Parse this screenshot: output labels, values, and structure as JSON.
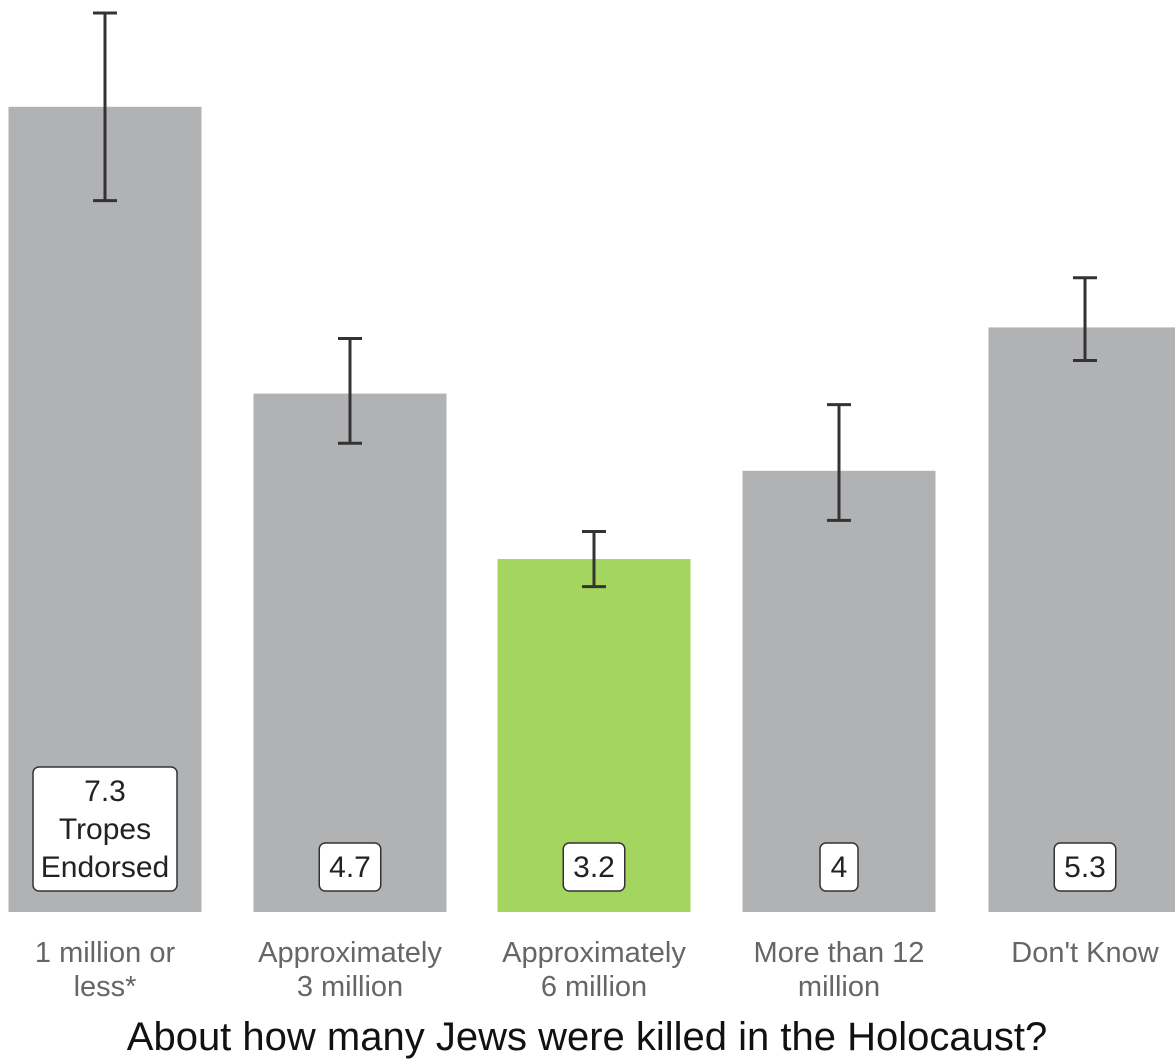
{
  "chart_data": {
    "type": "bar",
    "title": "About how many Jews were killed in the Holocaust?",
    "xlabel": "About how many Jews were killed in the Holocaust?",
    "ylabel": "",
    "ylim": [
      0,
      8.5
    ],
    "grid": false,
    "legend": "none",
    "categories": [
      [
        "1 million or",
        "less*"
      ],
      [
        "Approximately",
        "3 million"
      ],
      [
        "Approximately",
        "6 million"
      ],
      [
        "More than 12",
        "million"
      ],
      [
        "Don't Know"
      ]
    ],
    "values": [
      7.3,
      4.7,
      3.2,
      4.0,
      5.3
    ],
    "error_low": [
      6.45,
      4.25,
      2.95,
      3.55,
      5.0
    ],
    "error_high": [
      8.15,
      5.2,
      3.45,
      4.6,
      5.75
    ],
    "value_labels": [
      [
        "7.3",
        "Tropes",
        "Endorsed"
      ],
      [
        "4.7"
      ],
      [
        "3.2"
      ],
      [
        "4"
      ],
      [
        "5.3"
      ]
    ],
    "bar_colors": [
      "#b1b2b4",
      "#b1b2b4",
      "#a3d55f",
      "#b1b2b4",
      "#b1b2b4"
    ],
    "error_color": "#333333",
    "label_color": "#666666",
    "title_color": "#111111"
  }
}
